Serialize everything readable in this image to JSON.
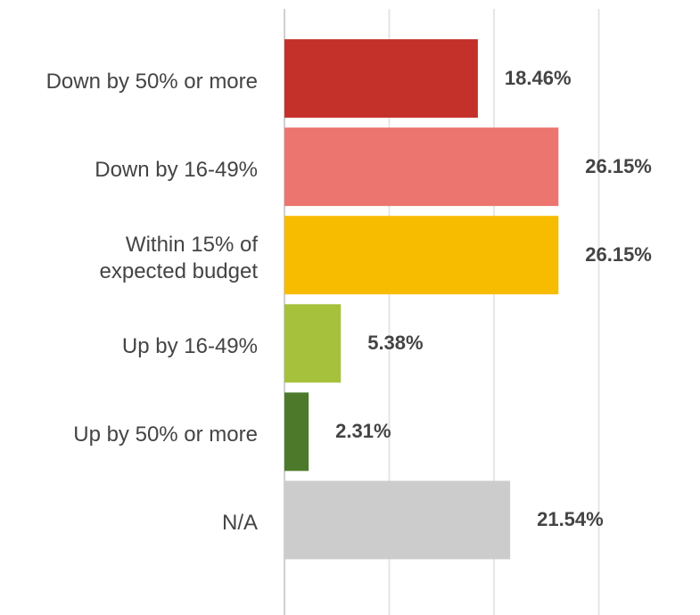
{
  "chart_data": {
    "type": "hbar",
    "categories": [
      "Down by 50% or more",
      "Down by 16-49%",
      "Within 15% of\nexpected budget",
      "Up by 16-49%",
      "Up by 50% or more",
      "N/A"
    ],
    "values": [
      18.46,
      26.15,
      26.15,
      5.38,
      2.31,
      21.54
    ],
    "value_labels": [
      "18.46%",
      "26.15%",
      "26.15%",
      "5.38%",
      "2.31%",
      "21.54%"
    ],
    "colors": [
      "#c4312b",
      "#ec7570",
      "#f7bb00",
      "#a6c13c",
      "#4c7a2a",
      "#cccccc"
    ],
    "xlim": [
      0,
      40
    ],
    "xticks": [
      0,
      10,
      20,
      30
    ],
    "grid": true,
    "xtick_labels": false
  }
}
